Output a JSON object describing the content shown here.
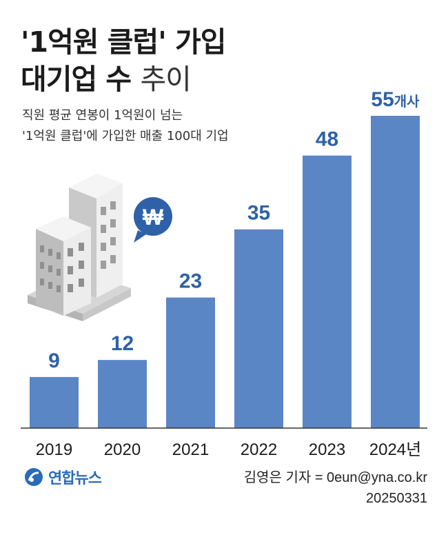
{
  "title": {
    "line1": "'1억원 클럽' 가입",
    "line2_bold": "대기업 수",
    "line2_light": "추이"
  },
  "subtitle": {
    "line1": "직원 평균 연봉이 1억원이 넘는",
    "line2": "'1억원 클럽'에 가입한 매출 100대 기업"
  },
  "icons": {
    "building": "office-building-icon",
    "currency": "won-sign-icon",
    "won_symbol": "₩"
  },
  "colors": {
    "bar": "#5b86c6",
    "value_label": "#2e61a8",
    "logo": "#2b6bb8"
  },
  "chart_data": {
    "type": "bar",
    "title": "'1억원 클럽' 가입 대기업 수 추이",
    "categories": [
      "2019",
      "2020",
      "2021",
      "2022",
      "2023",
      "2024"
    ],
    "category_labels": [
      "2019",
      "2020",
      "2021",
      "2022",
      "2023",
      "2024년"
    ],
    "values": [
      9,
      12,
      23,
      35,
      48,
      55
    ],
    "value_labels": [
      "9",
      "12",
      "23",
      "35",
      "48",
      "55"
    ],
    "value_unit_last": "개사",
    "xlabel": "",
    "ylabel": "",
    "ylim": [
      0,
      55
    ],
    "grid": false,
    "legend": "none"
  },
  "footer": {
    "logo_text": "연합뉴스",
    "credit": "김영은 기자 = 0eun@yna.co.kr",
    "date": "20250331"
  }
}
